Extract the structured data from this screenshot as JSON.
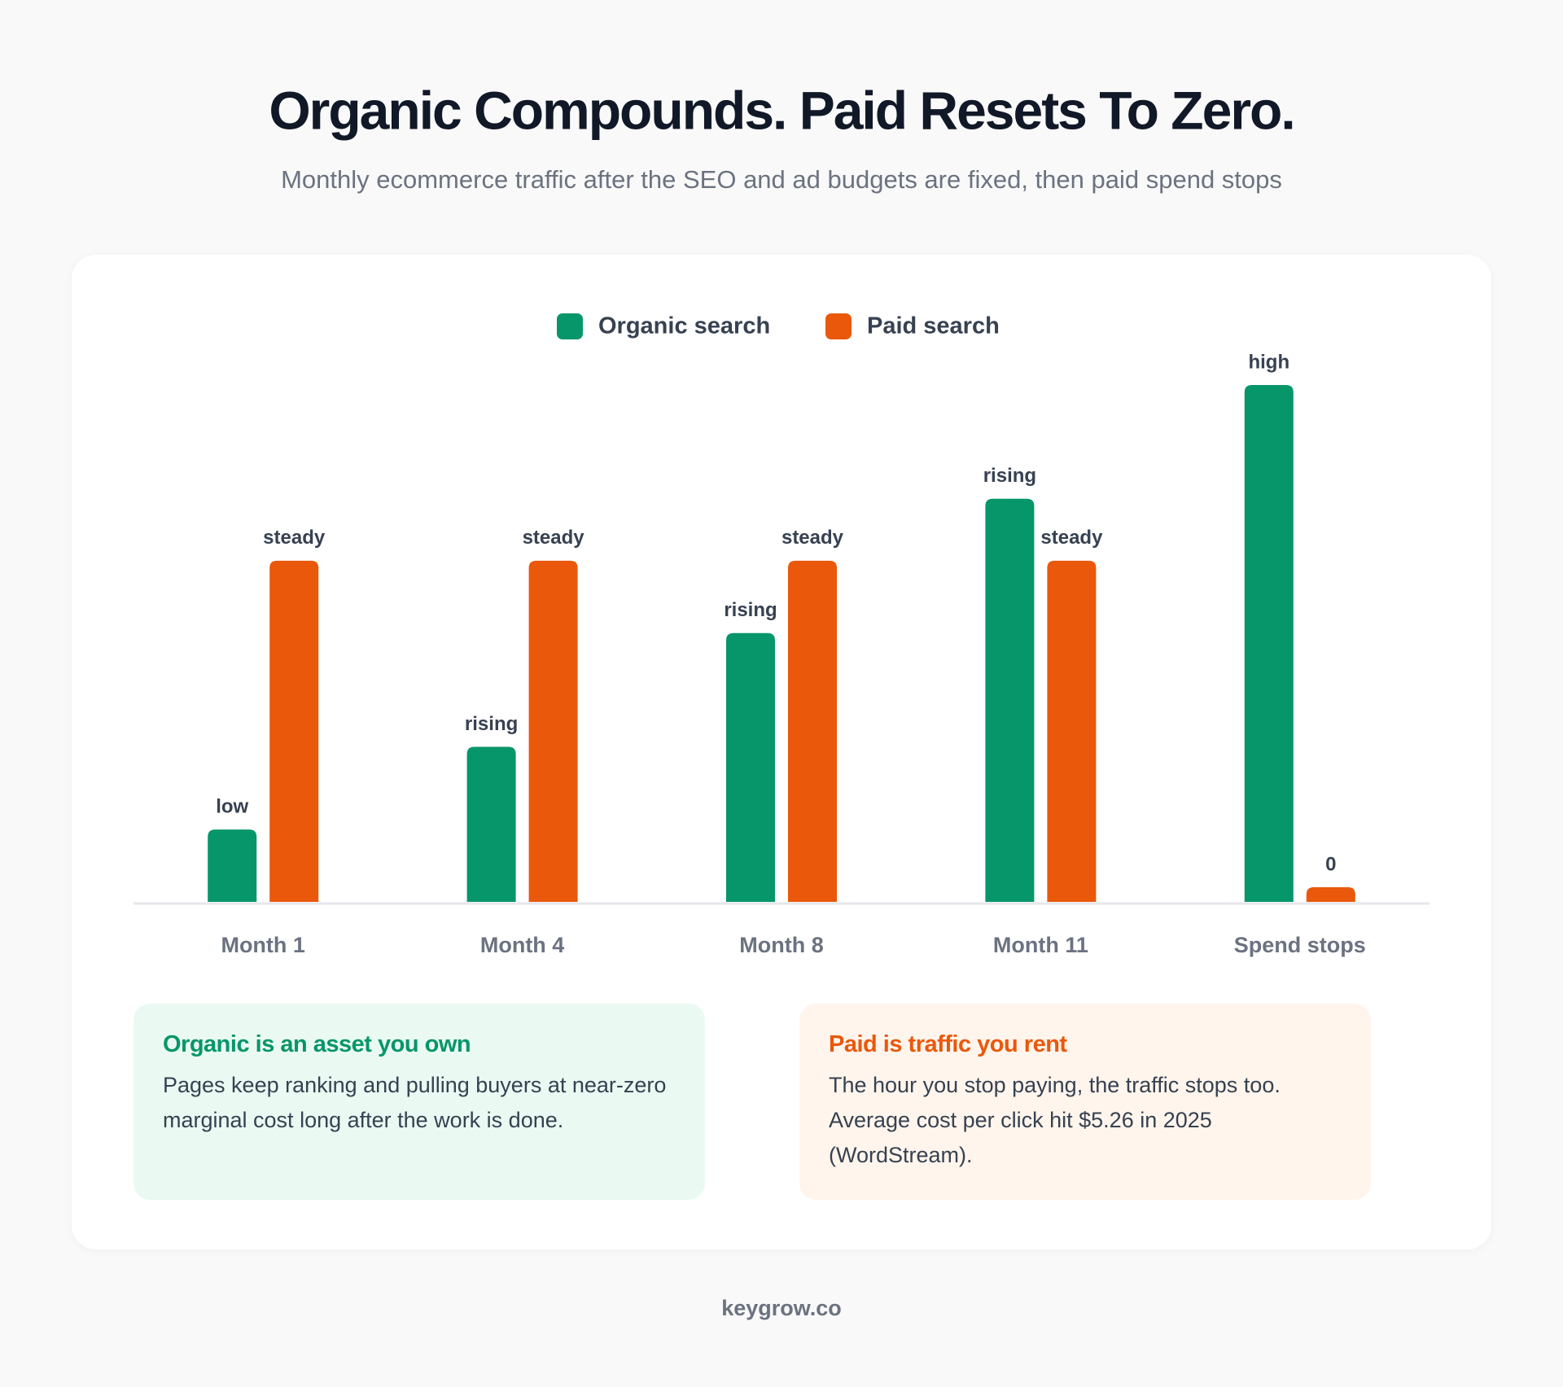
{
  "chart_data": {
    "type": "bar",
    "title": "Organic Compounds. Paid Resets To Zero.",
    "subtitle": "Monthly ecommerce traffic after the SEO and ad budgets are fixed, then paid spend stops",
    "categories": [
      "Month 1",
      "Month 4",
      "Month 8",
      "Month 11",
      "Spend stops"
    ],
    "series": [
      {
        "name": "Organic search",
        "color": "#079669",
        "values": [
          14,
          30,
          52,
          78,
          100
        ],
        "value_labels": [
          "low",
          "rising",
          "rising",
          "rising",
          "high"
        ]
      },
      {
        "name": "Paid search",
        "color": "#ea580c",
        "values": [
          66,
          66,
          66,
          66,
          0
        ],
        "value_labels": [
          "steady",
          "steady",
          "steady",
          "steady",
          "0"
        ]
      }
    ]
  },
  "notes": [
    {
      "title": "Organic is an asset you own",
      "body": "Pages keep ranking and pulling buyers at near-zero marginal cost long after the work is done."
    },
    {
      "title": "Paid is traffic you rent",
      "body": "The hour you stop paying, the traffic stops too. Average cost per click hit $5.26 in 2025 (WordStream)."
    }
  ],
  "footer": "keygrow.co"
}
